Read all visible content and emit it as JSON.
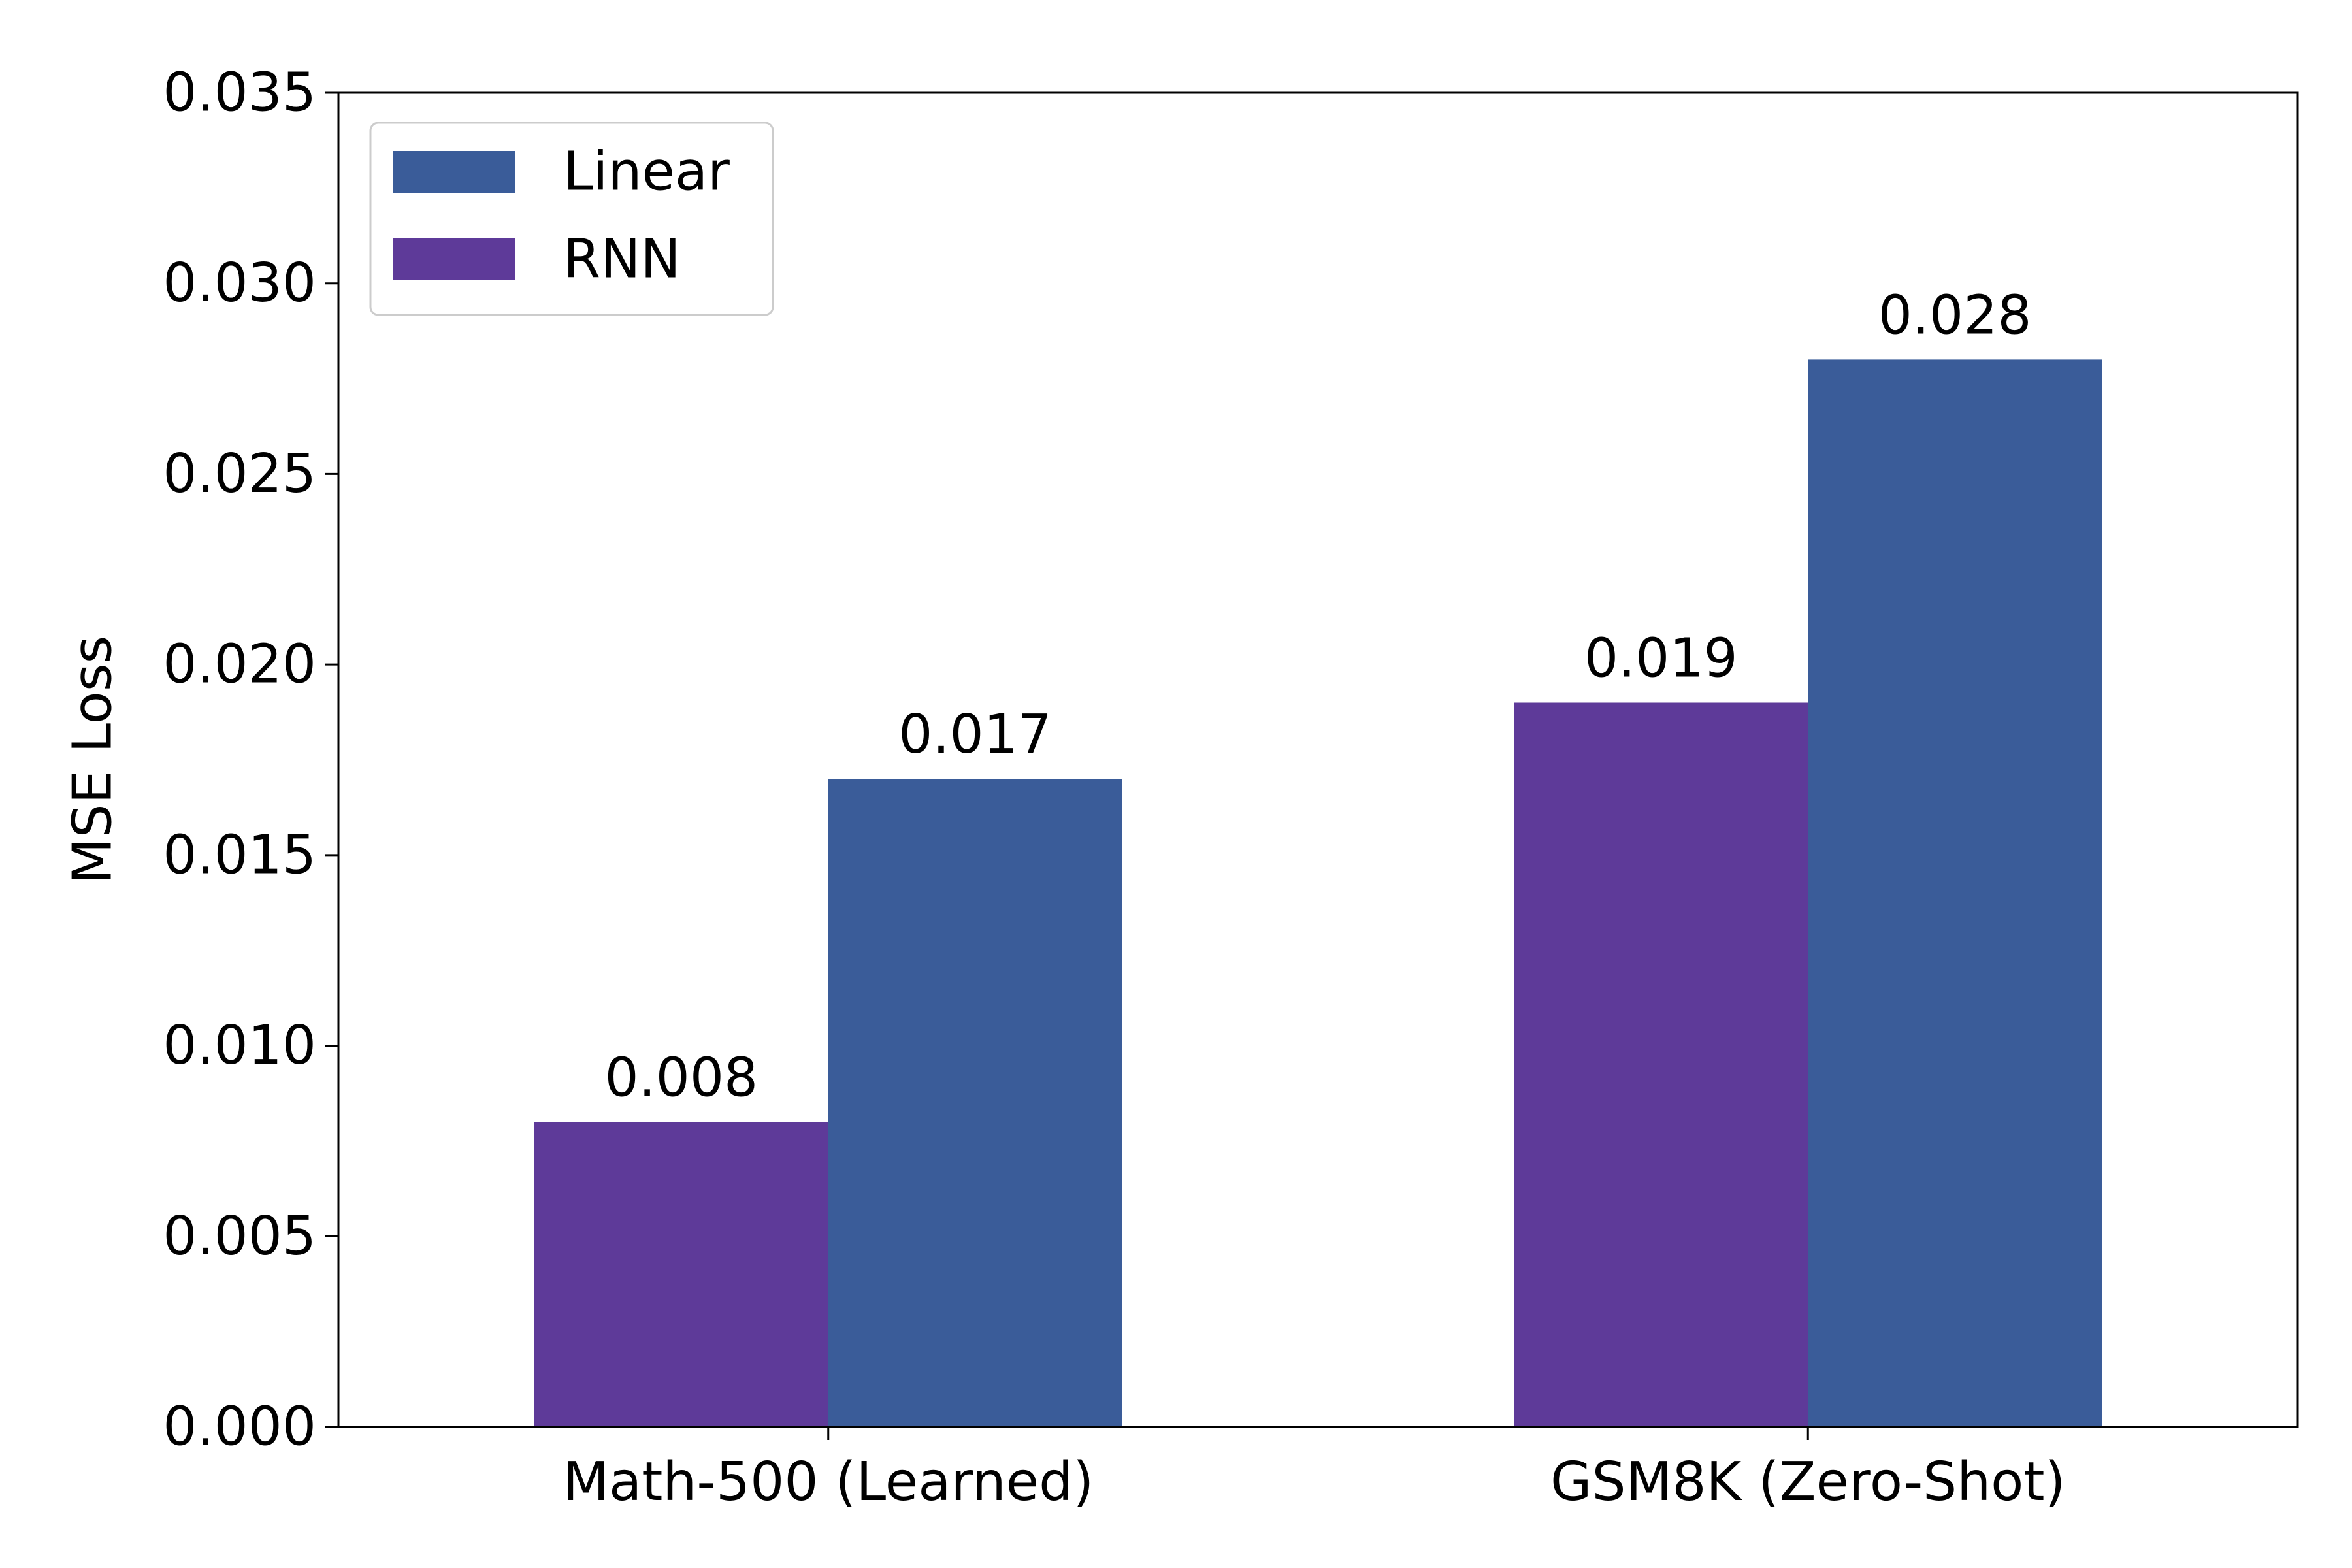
{
  "chart_data": {
    "type": "bar",
    "title": "",
    "xlabel": "",
    "ylabel": "MSE Loss",
    "categories": [
      "Math-500 (Learned)",
      "GSM8K (Zero-Shot)"
    ],
    "series": [
      {
        "name": "RNN",
        "values": [
          0.008,
          0.019
        ],
        "labels": [
          "0.008",
          "0.019"
        ],
        "color": "#5e3a99"
      },
      {
        "name": "Linear",
        "values": [
          0.017,
          0.028
        ],
        "labels": [
          "0.017",
          "0.028"
        ],
        "color": "#3a5c99"
      }
    ],
    "ylim": [
      0,
      0.035
    ],
    "yticks": [
      "0.000",
      "0.005",
      "0.010",
      "0.015",
      "0.020",
      "0.025",
      "0.030",
      "0.035"
    ],
    "grid": false,
    "legend": {
      "position": "top-left",
      "order": [
        "Linear",
        "RNN"
      ]
    }
  }
}
